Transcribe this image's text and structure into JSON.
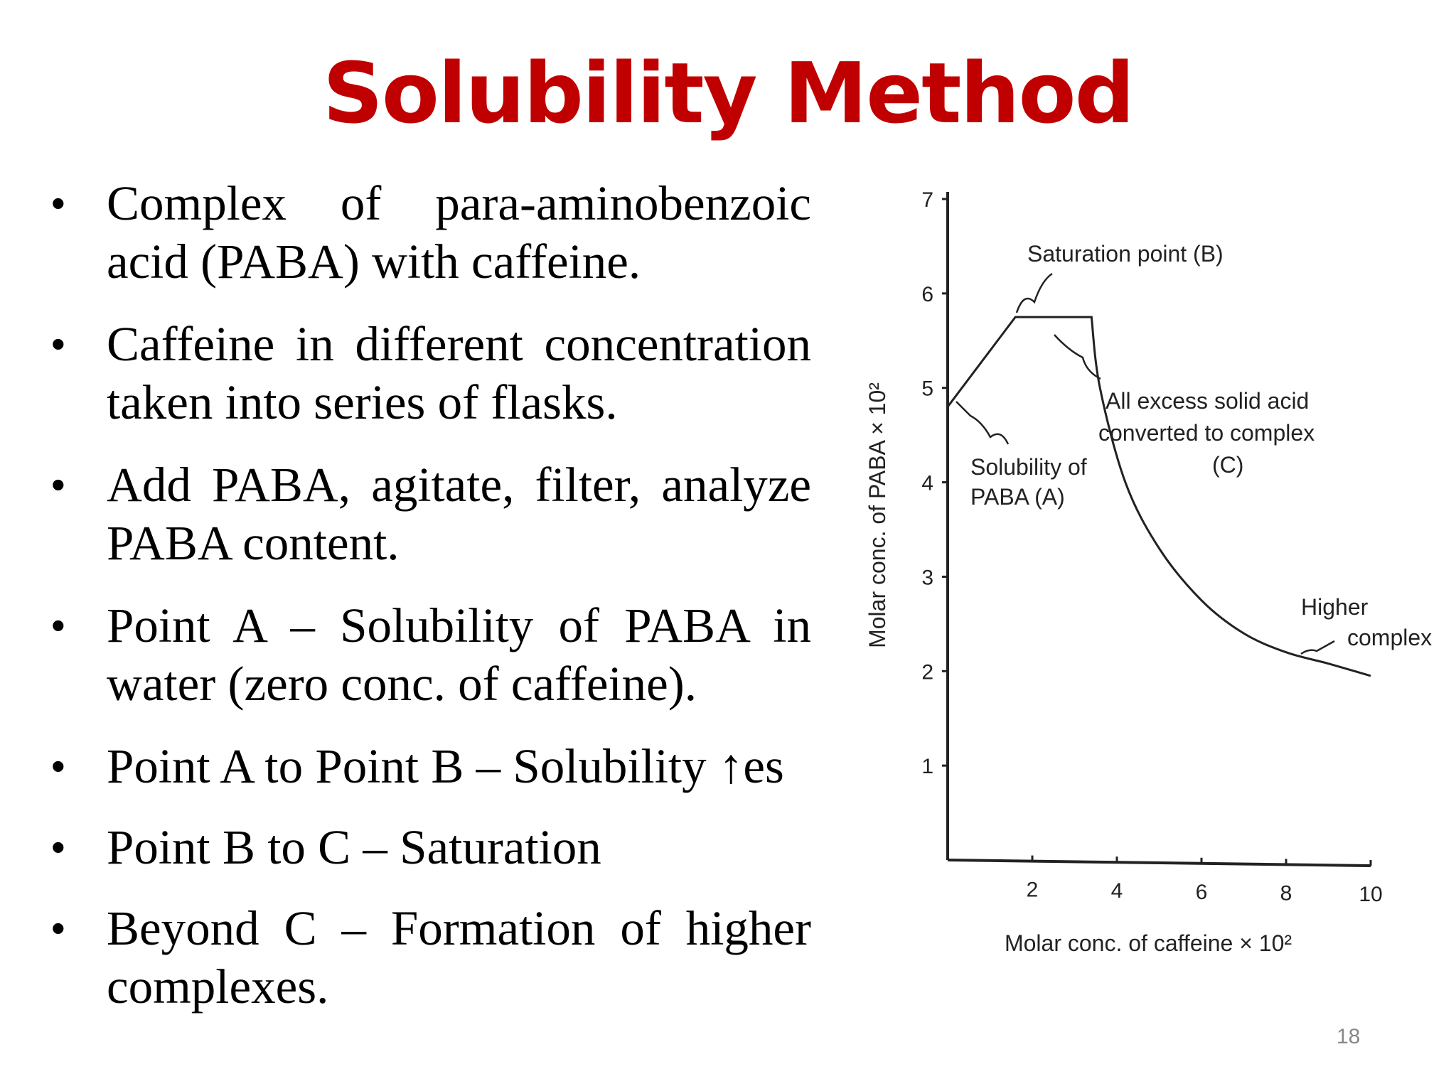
{
  "slide": {
    "title": "Solubility Method",
    "page_number": "18"
  },
  "bullets": [
    "Complex of para-aminobenzoic acid (PABA) with caffeine.",
    "Caffeine in different concentration taken into series of flasks.",
    "Add PABA, agitate, filter, analyze PABA content.",
    "Point A – Solubility of PABA in water (zero conc. of caffeine).",
    "Point A to Point B – Solubility ↑es",
    "Point B to C – Saturation",
    "Beyond C – Formation of higher complexes."
  ],
  "chart_data": {
    "type": "line",
    "xlabel": "Molar conc. of caffeine × 10²",
    "ylabel": "Molar conc. of PABA × 10²",
    "xlim": [
      0,
      10
    ],
    "ylim": [
      0,
      7
    ],
    "x_ticks": [
      "2",
      "4",
      "6",
      "8",
      "10"
    ],
    "y_ticks": [
      "1",
      "2",
      "3",
      "4",
      "5",
      "6",
      "7"
    ],
    "series": [
      {
        "x": [
          0,
          1.6,
          3.4,
          3.6,
          4.2,
          5.0,
          6.0,
          7.0,
          8.0,
          9.0,
          10.0
        ],
        "y": [
          4.8,
          5.75,
          5.75,
          5.0,
          4.0,
          3.3,
          2.75,
          2.4,
          2.2,
          2.08,
          1.95
        ]
      }
    ],
    "annotations": {
      "saturation": "Saturation point (B)",
      "excess_line1": "All excess solid acid",
      "excess_line2": "converted to complex",
      "excess_line3": "(C)",
      "solubility_line1": "Solubility of",
      "solubility_line2": "PABA (A)",
      "higher_line1": "Higher",
      "higher_line2": "complex"
    }
  }
}
